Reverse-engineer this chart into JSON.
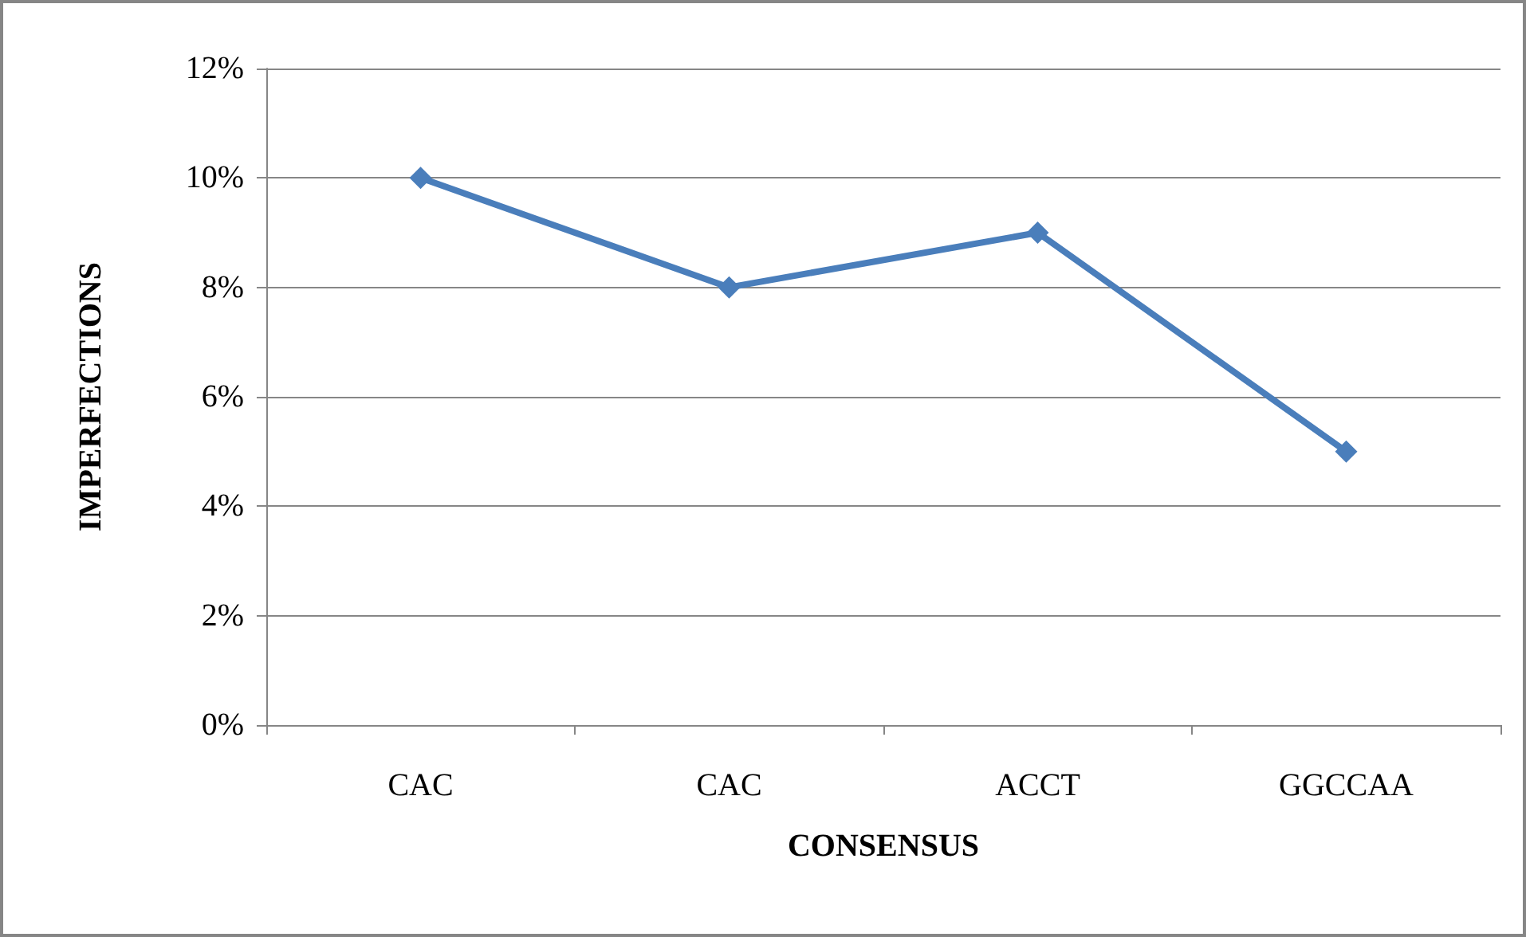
{
  "chart_data": {
    "type": "line",
    "xlabel": "CONSENSUS",
    "ylabel": "IMPERFECTIONS",
    "categories": [
      "CAC",
      "CAC",
      "ACCT",
      "GGCCAA"
    ],
    "series": [
      {
        "color": "#4a7ebb",
        "values": [
          10,
          8,
          9,
          5
        ]
      }
    ],
    "ylim": [
      0,
      12
    ],
    "yticks": [
      {
        "value": 0,
        "label": "0%"
      },
      {
        "value": 2,
        "label": "2%"
      },
      {
        "value": 4,
        "label": "4%"
      },
      {
        "value": 6,
        "label": "6%"
      },
      {
        "value": 8,
        "label": "8%"
      },
      {
        "value": 10,
        "label": "10%"
      },
      {
        "value": 12,
        "label": "12%"
      }
    ],
    "grid": "y",
    "marker": "diamond",
    "line_style": "solid"
  }
}
